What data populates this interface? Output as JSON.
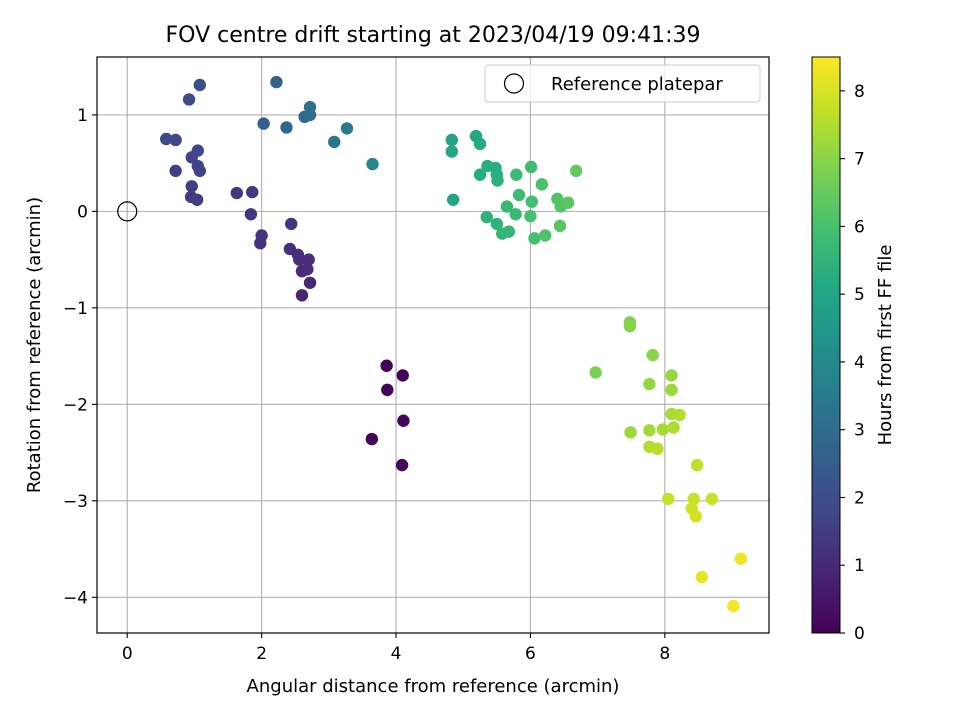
{
  "chart_data": {
    "type": "scatter",
    "title": "FOV centre drift starting at 2023/04/19 09:41:39",
    "xlabel": "Angular distance from reference (arcmin)",
    "ylabel": "Rotation from reference (arcmin)",
    "xlim": [
      -0.45,
      9.55
    ],
    "ylim": [
      -4.37,
      1.6
    ],
    "xticks": [
      0,
      2,
      4,
      6,
      8
    ],
    "yticks": [
      1,
      0,
      -1,
      -2,
      -3,
      -4
    ],
    "xtick_labels": [
      "0",
      "2",
      "4",
      "6",
      "8"
    ],
    "ytick_labels": [
      "1",
      "0",
      "−1",
      "−2",
      "−3",
      "−4"
    ],
    "grid": true,
    "legend": {
      "placement": "top-right",
      "entries": [
        "Reference platepar"
      ]
    },
    "reference_point": {
      "x": 0,
      "y": 0
    },
    "colorbar": {
      "label": "Hours from first FF file",
      "min": 0,
      "max": 8.5,
      "ticks": [
        0,
        1,
        2,
        3,
        4,
        5,
        6,
        7,
        8
      ],
      "tick_labels": [
        "0",
        "1",
        "2",
        "3",
        "4",
        "5",
        "6",
        "7",
        "8"
      ],
      "colormap": "viridis"
    },
    "points": [
      {
        "x": 3.86,
        "y": -1.6,
        "h": 0.05
      },
      {
        "x": 3.87,
        "y": -1.85,
        "h": 0.08
      },
      {
        "x": 4.1,
        "y": -1.7,
        "h": 0.1
      },
      {
        "x": 3.64,
        "y": -2.36,
        "h": 0.12
      },
      {
        "x": 4.11,
        "y": -2.17,
        "h": 0.15
      },
      {
        "x": 4.09,
        "y": -2.63,
        "h": 0.18
      },
      {
        "x": 2.6,
        "y": -0.87,
        "h": 0.9
      },
      {
        "x": 2.72,
        "y": -0.74,
        "h": 0.95
      },
      {
        "x": 2.6,
        "y": -0.62,
        "h": 1.0
      },
      {
        "x": 2.68,
        "y": -0.6,
        "h": 1.05
      },
      {
        "x": 2.56,
        "y": -0.5,
        "h": 1.1
      },
      {
        "x": 2.7,
        "y": -0.5,
        "h": 1.12
      },
      {
        "x": 2.54,
        "y": -0.45,
        "h": 1.15
      },
      {
        "x": 2.42,
        "y": -0.39,
        "h": 1.2
      },
      {
        "x": 1.98,
        "y": -0.33,
        "h": 1.22
      },
      {
        "x": 2.0,
        "y": -0.25,
        "h": 1.25
      },
      {
        "x": 2.44,
        "y": -0.13,
        "h": 1.28
      },
      {
        "x": 1.84,
        "y": -0.03,
        "h": 1.3
      },
      {
        "x": 1.63,
        "y": 0.19,
        "h": 1.35
      },
      {
        "x": 1.86,
        "y": 0.2,
        "h": 1.4
      },
      {
        "x": 0.95,
        "y": 0.15,
        "h": 1.5
      },
      {
        "x": 1.04,
        "y": 0.12,
        "h": 1.55
      },
      {
        "x": 0.96,
        "y": 0.26,
        "h": 1.6
      },
      {
        "x": 0.72,
        "y": 0.42,
        "h": 1.65
      },
      {
        "x": 1.08,
        "y": 0.42,
        "h": 1.7
      },
      {
        "x": 1.05,
        "y": 0.47,
        "h": 1.72
      },
      {
        "x": 0.96,
        "y": 0.56,
        "h": 1.75
      },
      {
        "x": 1.05,
        "y": 0.63,
        "h": 1.8
      },
      {
        "x": 0.58,
        "y": 0.75,
        "h": 1.85
      },
      {
        "x": 0.72,
        "y": 0.74,
        "h": 1.9
      },
      {
        "x": 0.92,
        "y": 1.16,
        "h": 1.95
      },
      {
        "x": 1.08,
        "y": 1.31,
        "h": 2.0
      },
      {
        "x": 2.03,
        "y": 0.91,
        "h": 2.6
      },
      {
        "x": 2.22,
        "y": 1.34,
        "h": 2.7
      },
      {
        "x": 2.37,
        "y": 0.87,
        "h": 2.8
      },
      {
        "x": 2.64,
        "y": 0.98,
        "h": 2.9
      },
      {
        "x": 2.72,
        "y": 1.0,
        "h": 3.0
      },
      {
        "x": 2.72,
        "y": 1.08,
        "h": 3.05
      },
      {
        "x": 3.08,
        "y": 0.72,
        "h": 3.3
      },
      {
        "x": 3.27,
        "y": 0.86,
        "h": 3.5
      },
      {
        "x": 3.65,
        "y": 0.49,
        "h": 3.8
      },
      {
        "x": 4.83,
        "y": 0.74,
        "h": 4.9
      },
      {
        "x": 4.83,
        "y": 0.62,
        "h": 4.95
      },
      {
        "x": 4.85,
        "y": 0.12,
        "h": 5.0
      },
      {
        "x": 5.19,
        "y": 0.78,
        "h": 5.1
      },
      {
        "x": 5.25,
        "y": 0.7,
        "h": 5.15
      },
      {
        "x": 5.25,
        "y": 0.38,
        "h": 5.2
      },
      {
        "x": 5.36,
        "y": 0.47,
        "h": 5.25
      },
      {
        "x": 5.48,
        "y": 0.45,
        "h": 5.3
      },
      {
        "x": 5.5,
        "y": 0.38,
        "h": 5.35
      },
      {
        "x": 5.51,
        "y": 0.32,
        "h": 5.4
      },
      {
        "x": 5.35,
        "y": -0.06,
        "h": 5.45
      },
      {
        "x": 5.5,
        "y": -0.13,
        "h": 5.5
      },
      {
        "x": 5.58,
        "y": -0.23,
        "h": 5.55
      },
      {
        "x": 5.68,
        "y": -0.21,
        "h": 5.6
      },
      {
        "x": 5.65,
        "y": 0.05,
        "h": 5.65
      },
      {
        "x": 5.78,
        "y": -0.03,
        "h": 5.7
      },
      {
        "x": 5.79,
        "y": 0.38,
        "h": 5.75
      },
      {
        "x": 5.83,
        "y": 0.17,
        "h": 5.8
      },
      {
        "x": 6.01,
        "y": 0.46,
        "h": 5.85
      },
      {
        "x": 6.02,
        "y": 0.1,
        "h": 5.9
      },
      {
        "x": 6.0,
        "y": -0.05,
        "h": 5.95
      },
      {
        "x": 6.06,
        "y": -0.28,
        "h": 6.0
      },
      {
        "x": 6.17,
        "y": 0.28,
        "h": 6.05
      },
      {
        "x": 6.22,
        "y": -0.25,
        "h": 6.1
      },
      {
        "x": 6.4,
        "y": 0.13,
        "h": 6.15
      },
      {
        "x": 6.45,
        "y": 0.05,
        "h": 6.2
      },
      {
        "x": 6.44,
        "y": -0.15,
        "h": 6.25
      },
      {
        "x": 6.56,
        "y": 0.09,
        "h": 6.3
      },
      {
        "x": 6.68,
        "y": 0.42,
        "h": 6.4
      },
      {
        "x": 6.97,
        "y": -1.67,
        "h": 6.8
      },
      {
        "x": 7.48,
        "y": -1.15,
        "h": 6.9
      },
      {
        "x": 7.48,
        "y": -1.19,
        "h": 6.95
      },
      {
        "x": 7.82,
        "y": -1.49,
        "h": 7.0
      },
      {
        "x": 7.77,
        "y": -1.79,
        "h": 7.1
      },
      {
        "x": 8.1,
        "y": -1.7,
        "h": 7.15
      },
      {
        "x": 8.1,
        "y": -1.85,
        "h": 7.2
      },
      {
        "x": 7.49,
        "y": -2.29,
        "h": 7.25
      },
      {
        "x": 7.77,
        "y": -2.27,
        "h": 7.3
      },
      {
        "x": 7.97,
        "y": -2.26,
        "h": 7.35
      },
      {
        "x": 8.1,
        "y": -2.1,
        "h": 7.4
      },
      {
        "x": 8.13,
        "y": -2.24,
        "h": 7.45
      },
      {
        "x": 8.22,
        "y": -2.11,
        "h": 7.5
      },
      {
        "x": 7.77,
        "y": -2.44,
        "h": 7.55
      },
      {
        "x": 7.89,
        "y": -2.46,
        "h": 7.6
      },
      {
        "x": 8.48,
        "y": -2.63,
        "h": 7.7
      },
      {
        "x": 8.05,
        "y": -2.98,
        "h": 7.75
      },
      {
        "x": 8.43,
        "y": -2.98,
        "h": 7.8
      },
      {
        "x": 8.7,
        "y": -2.98,
        "h": 7.85
      },
      {
        "x": 8.4,
        "y": -3.08,
        "h": 7.9
      },
      {
        "x": 8.46,
        "y": -3.16,
        "h": 7.95
      },
      {
        "x": 8.55,
        "y": -3.79,
        "h": 8.2
      },
      {
        "x": 9.13,
        "y": -3.6,
        "h": 8.3
      },
      {
        "x": 9.02,
        "y": -4.09,
        "h": 8.4
      }
    ]
  }
}
